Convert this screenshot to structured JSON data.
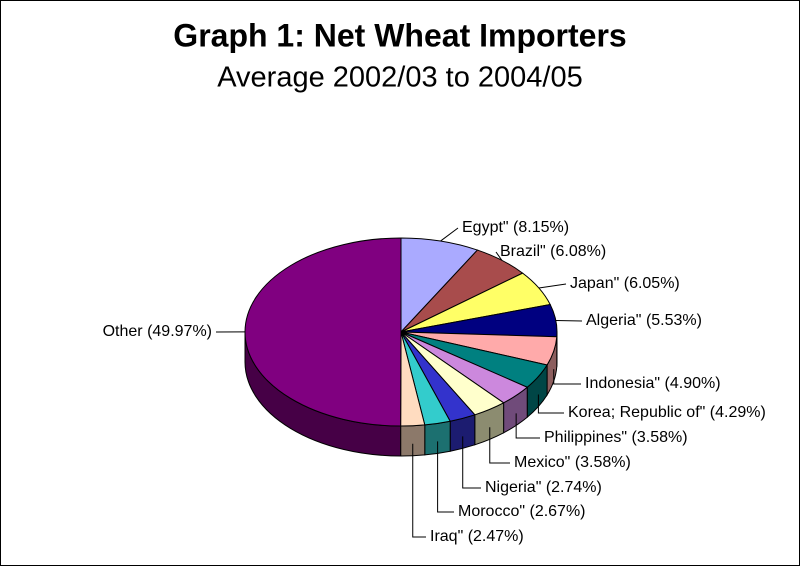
{
  "chart_data": {
    "type": "pie3d",
    "title": "Graph 1: Net Wheat Importers",
    "subtitle": "Average 2002/03 to 2004/05",
    "categories": [
      "Egypt\"",
      "Brazil\"",
      "Japan\"",
      "Algeria\"",
      "Indonesia\"",
      "Korea; Republic of\"",
      "Philippines\"",
      "Mexico\"",
      "Nigeria\"",
      "Morocco\"",
      "Iraq\"",
      "Other"
    ],
    "values": [
      8.15,
      6.08,
      6.05,
      5.53,
      4.9,
      4.29,
      3.58,
      3.58,
      2.74,
      2.67,
      2.47,
      49.97
    ],
    "value_labels": [
      "(8.15%)",
      "(6.08%)",
      "(6.05%)",
      "(5.53%)",
      "(4.90%)",
      "(4.29%)",
      "(3.58%)",
      "(3.58%)",
      "(2.74%)",
      "(2.67%)",
      "(2.47%)",
      "(49.97%)"
    ],
    "colors": [
      "#aaaaff",
      "#a84c4c",
      "#ffff66",
      "#000080",
      "#ffaaaa",
      "#008080",
      "#cc88dd",
      "#ffffcc",
      "#3333cc",
      "#33cccc",
      "#ffdcc0",
      "#800080"
    ]
  }
}
